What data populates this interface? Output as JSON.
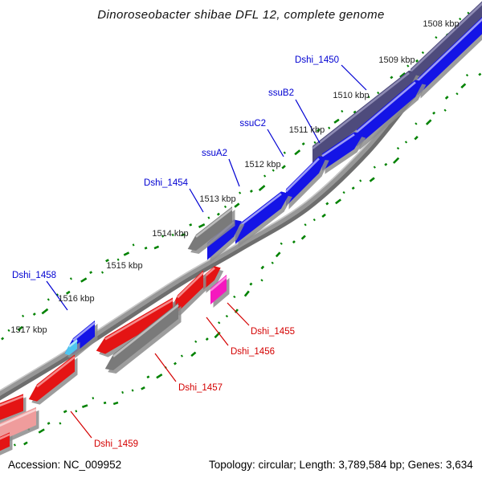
{
  "title": "Dinoroseobacter shibae DFL 12, complete genome",
  "status_bar": {
    "accession": "Accession: NC_009952",
    "summary": "Topology: circular; Length: 3,789,584 bp; Genes: 3,634"
  },
  "scale": {
    "unit": "kbp",
    "labels": [
      "1508 kbp",
      "1509 kbp",
      "1510 kbp",
      "1511 kbp",
      "1512 kbp",
      "1513 kbp",
      "1514 kbp",
      "1515 kbp",
      "1516 kbp",
      "1517 kbp"
    ]
  },
  "genes": [
    {
      "id": "slate-a",
      "color": "operon_gene"
    },
    {
      "id": "dshi-1450",
      "color": "operon_gene"
    },
    {
      "id": "blue-b6",
      "color": "forward_gene"
    },
    {
      "id": "ssub2-gene",
      "color": "forward_gene"
    },
    {
      "id": "ssuc2-gene",
      "color": "forward_gene"
    },
    {
      "id": "blue-b3",
      "color": "forward_gene"
    },
    {
      "id": "ssua2-gene",
      "color": "forward_gene"
    },
    {
      "id": "blue-b1",
      "color": "forward_gene"
    },
    {
      "id": "dshi-1454",
      "color": "misc_gene"
    },
    {
      "id": "dshi-1458",
      "color": "forward_gene"
    },
    {
      "id": "cyan-gene",
      "color": "rna_gene"
    },
    {
      "id": "red-wedge",
      "color": "reverse_gene"
    },
    {
      "id": "dshi-1455",
      "color": "highlight_gene"
    },
    {
      "id": "dshi-1456",
      "color": "reverse_gene"
    },
    {
      "id": "red-r3b",
      "color": "reverse_gene"
    },
    {
      "id": "dshi-1457",
      "color": "misc_gene"
    },
    {
      "id": "red-r4",
      "color": "reverse_gene"
    },
    {
      "id": "red-r5",
      "color": "reverse_gene"
    },
    {
      "id": "dshi-1459",
      "color": "pseudo_gene"
    },
    {
      "id": "red-r6",
      "color": "reverse_gene"
    }
  ],
  "gene_labels": [
    {
      "id": "dshi-1450",
      "text": "Dshi_1450",
      "color_key": "label_blue"
    },
    {
      "id": "ssub2",
      "text": "ssuB2",
      "color_key": "label_blue"
    },
    {
      "id": "ssuc2",
      "text": "ssuC2",
      "color_key": "label_blue"
    },
    {
      "id": "ssua2",
      "text": "ssuA2",
      "color_key": "label_blue"
    },
    {
      "id": "dshi-1454",
      "text": "Dshi_1454",
      "color_key": "label_blue"
    },
    {
      "id": "dshi-1458",
      "text": "Dshi_1458",
      "color_key": "label_blue"
    },
    {
      "id": "dshi-1455",
      "text": "Dshi_1455",
      "color_key": "label_red"
    },
    {
      "id": "dshi-1456",
      "text": "Dshi_1456",
      "color_key": "label_red"
    },
    {
      "id": "dshi-1457",
      "text": "Dshi_1457",
      "color_key": "label_red"
    },
    {
      "id": "dshi-1459",
      "text": "Dshi_1459",
      "color_key": "label_red"
    }
  ],
  "colors": {
    "forward_gene": "#1414E6",
    "forward_gene_light": "#9C9CF8",
    "operon_gene": "#4E4B7C",
    "operon_gene_light": "#8E8BB4",
    "reverse_gene": "#E41414",
    "reverse_gene_light": "#F58A8A",
    "misc_gene": "#7A7A7A",
    "misc_gene_light": "#BDBDBD",
    "highlight_gene": "#F518BE",
    "highlight_gene_light": "#FB8BE0",
    "pseudo_gene": "#EF9C9C",
    "pseudo_gene_light": "#F9D0D0",
    "rna_gene": "#4FC6F0",
    "rna_gene_light": "#AEE6FA",
    "backbone": "#979797",
    "backbone_shadow": "#6E6E6E",
    "dots": "#008200",
    "label_blue": "#0000D2",
    "label_red": "#D40000",
    "tick_text": "#222222",
    "gene_shadow": "#8C8C8C"
  }
}
